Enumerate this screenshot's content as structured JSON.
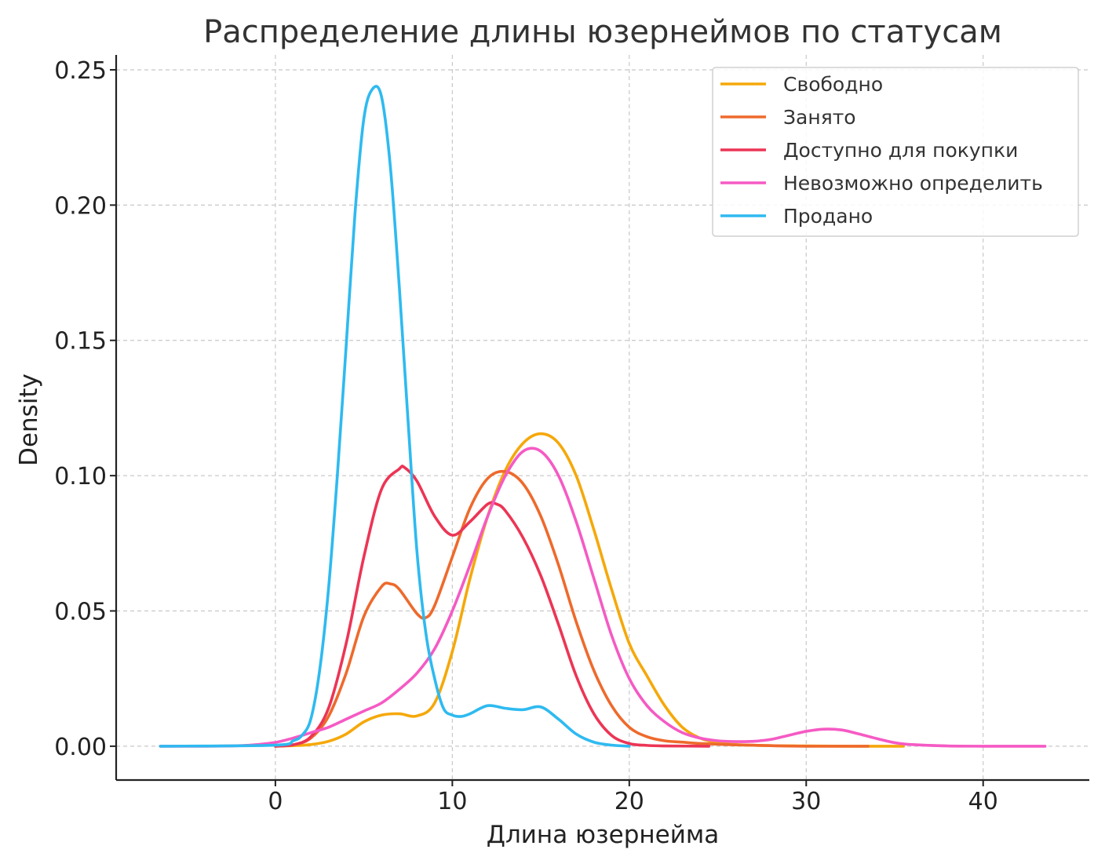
{
  "chart_data": {
    "type": "line",
    "title": "Распределение длины юзернеймов по статусам",
    "xlabel": "Длина юзернейма",
    "ylabel": "Density",
    "xlim": [
      -9,
      46
    ],
    "ylim": [
      -0.0125,
      0.2555
    ],
    "xticks": [
      0,
      10,
      20,
      30,
      40
    ],
    "xtick_labels": [
      "0",
      "10",
      "20",
      "30",
      "40"
    ],
    "yticks": [
      0.0,
      0.05,
      0.1,
      0.15,
      0.2,
      0.25
    ],
    "ytick_labels": [
      "0.00",
      "0.05",
      "0.10",
      "0.15",
      "0.20",
      "0.25"
    ],
    "grid": true,
    "legend_position": "top-right",
    "series": [
      {
        "name": "Свободно",
        "color": "#F5A80A",
        "x": [
          0,
          1,
          2,
          3,
          4,
          5,
          6,
          7,
          8,
          9,
          10,
          11,
          12,
          13,
          14,
          15,
          16,
          17,
          18,
          19,
          20,
          21,
          22,
          23,
          24,
          25,
          26,
          28,
          30,
          33,
          35.5
        ],
        "values": [
          0.0,
          0.0002,
          0.0006,
          0.0018,
          0.0045,
          0.009,
          0.0115,
          0.012,
          0.0112,
          0.016,
          0.035,
          0.062,
          0.085,
          0.102,
          0.112,
          0.1155,
          0.112,
          0.1,
          0.08,
          0.058,
          0.038,
          0.026,
          0.015,
          0.007,
          0.003,
          0.0013,
          0.0006,
          0.0002,
          0.0001,
          0.0,
          0.0
        ]
      },
      {
        "name": "Занято",
        "color": "#EE6A2C",
        "x": [
          0,
          1,
          2,
          3,
          4,
          5,
          6,
          6.5,
          7,
          8,
          8.5,
          9,
          10,
          11,
          12,
          13,
          14,
          15,
          16,
          17,
          18,
          19,
          20,
          21,
          22,
          23,
          24,
          26,
          28,
          30,
          33.5
        ],
        "values": [
          0.0,
          0.0005,
          0.003,
          0.011,
          0.027,
          0.048,
          0.059,
          0.06,
          0.058,
          0.049,
          0.0475,
          0.052,
          0.07,
          0.088,
          0.099,
          0.1015,
          0.097,
          0.085,
          0.067,
          0.046,
          0.028,
          0.015,
          0.007,
          0.0035,
          0.002,
          0.0015,
          0.001,
          0.0005,
          0.0002,
          0.0,
          0.0
        ]
      },
      {
        "name": "Доступно для покупки",
        "color": "#EC3555",
        "x": [
          0,
          1,
          2,
          3,
          4,
          5,
          6,
          7,
          7.3,
          8,
          9,
          10,
          11,
          12,
          12.5,
          13,
          14,
          15,
          16,
          17,
          18,
          19,
          20,
          21,
          22,
          24.5
        ],
        "values": [
          0.0,
          0.0005,
          0.0035,
          0.014,
          0.038,
          0.07,
          0.095,
          0.1025,
          0.103,
          0.098,
          0.085,
          0.078,
          0.083,
          0.0895,
          0.0895,
          0.087,
          0.077,
          0.063,
          0.045,
          0.026,
          0.012,
          0.004,
          0.001,
          0.0003,
          0.0001,
          0.0
        ]
      },
      {
        "name": "Невозможно определить",
        "color": "#F55AC4",
        "x": [
          -6.5,
          -4,
          -2,
          -1,
          0,
          1,
          2,
          3,
          4,
          5,
          6,
          7,
          8,
          9,
          10,
          11,
          12,
          13,
          14,
          15,
          16,
          17,
          18,
          19,
          20,
          21,
          22,
          23,
          24,
          25,
          26,
          27,
          28,
          29,
          30,
          31,
          32,
          33,
          34,
          35,
          36,
          38,
          40,
          43.5
        ],
        "values": [
          0.0,
          0.0,
          0.0002,
          0.0006,
          0.0014,
          0.003,
          0.005,
          0.007,
          0.01,
          0.013,
          0.016,
          0.021,
          0.027,
          0.036,
          0.05,
          0.067,
          0.085,
          0.1,
          0.109,
          0.109,
          0.1,
          0.083,
          0.062,
          0.041,
          0.025,
          0.015,
          0.009,
          0.005,
          0.003,
          0.002,
          0.0017,
          0.0018,
          0.0025,
          0.004,
          0.0055,
          0.0063,
          0.006,
          0.0045,
          0.0028,
          0.0013,
          0.0006,
          0.0001,
          0.0,
          0.0
        ]
      },
      {
        "name": "Продано",
        "color": "#2EBAF0",
        "x": [
          -6.5,
          0,
          1,
          1.5,
          2,
          2.5,
          3,
          3.5,
          4,
          4.5,
          5,
          5.5,
          6,
          6.5,
          7,
          7.5,
          8,
          8.5,
          9,
          9.5,
          10,
          10.5,
          11,
          12,
          13,
          14,
          15,
          16,
          17,
          18,
          19,
          20
        ],
        "values": [
          0.0,
          0.0004,
          0.002,
          0.004,
          0.01,
          0.028,
          0.058,
          0.1,
          0.148,
          0.197,
          0.232,
          0.243,
          0.24,
          0.214,
          0.17,
          0.12,
          0.072,
          0.042,
          0.025,
          0.014,
          0.0115,
          0.011,
          0.012,
          0.015,
          0.014,
          0.0135,
          0.0145,
          0.01,
          0.0045,
          0.0015,
          0.0004,
          0.0
        ]
      }
    ]
  }
}
